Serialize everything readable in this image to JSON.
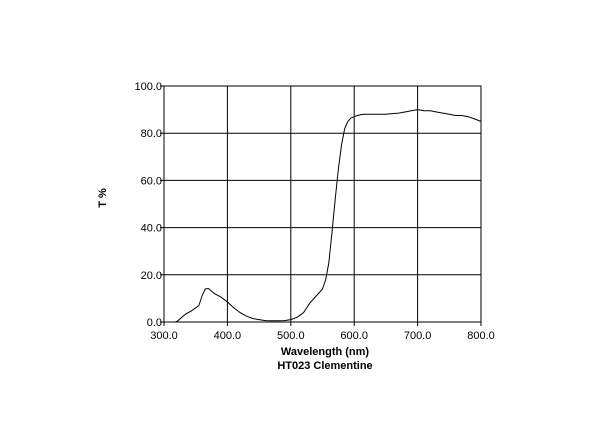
{
  "chart_data": {
    "type": "line",
    "title": "",
    "xlabel": "Wavelength (nm)",
    "ylabel": "T %",
    "caption": "HT023 Clementine",
    "xlim": [
      300,
      800
    ],
    "ylim": [
      0,
      100
    ],
    "x_ticks": [
      300,
      400,
      500,
      600,
      700,
      800
    ],
    "x_tick_labels": [
      "300.0",
      "400.0",
      "500.0",
      "600.0",
      "700.0",
      "800.0"
    ],
    "y_ticks": [
      0,
      20,
      40,
      60,
      80,
      100
    ],
    "y_tick_labels": [
      "0.0",
      "20.0",
      "40.0",
      "60.0",
      "80.0",
      "100.0"
    ],
    "grid": true,
    "line_color": "#000000",
    "series": [
      {
        "x": [
          318,
          322,
          328,
          335,
          342,
          350,
          355,
          360,
          365,
          370,
          375,
          380,
          390,
          400,
          410,
          420,
          430,
          440,
          450,
          460,
          470,
          480,
          490,
          500,
          510,
          520,
          530,
          540,
          550,
          555,
          560,
          565,
          570,
          575,
          580,
          585,
          590,
          595,
          600,
          605,
          610,
          615,
          620,
          630,
          640,
          650,
          660,
          670,
          680,
          690,
          700,
          705,
          710,
          720,
          730,
          740,
          750,
          760,
          770,
          780,
          790,
          800
        ],
        "y": [
          0,
          0.5,
          2,
          3.5,
          4.5,
          6,
          7,
          11,
          14,
          14.2,
          13,
          12,
          10.5,
          8.5,
          6,
          4,
          2.5,
          1.5,
          1,
          0.6,
          0.5,
          0.5,
          0.6,
          1,
          2,
          4,
          8,
          11,
          14,
          18,
          25,
          38,
          52,
          65,
          75,
          82,
          85,
          86.5,
          87,
          87.5,
          87.8,
          88,
          88,
          88,
          88,
          88,
          88.3,
          88.5,
          89,
          89.5,
          90,
          89.8,
          89.5,
          89.5,
          89,
          88.5,
          88,
          87.5,
          87.5,
          87,
          86,
          85
        ]
      }
    ]
  }
}
